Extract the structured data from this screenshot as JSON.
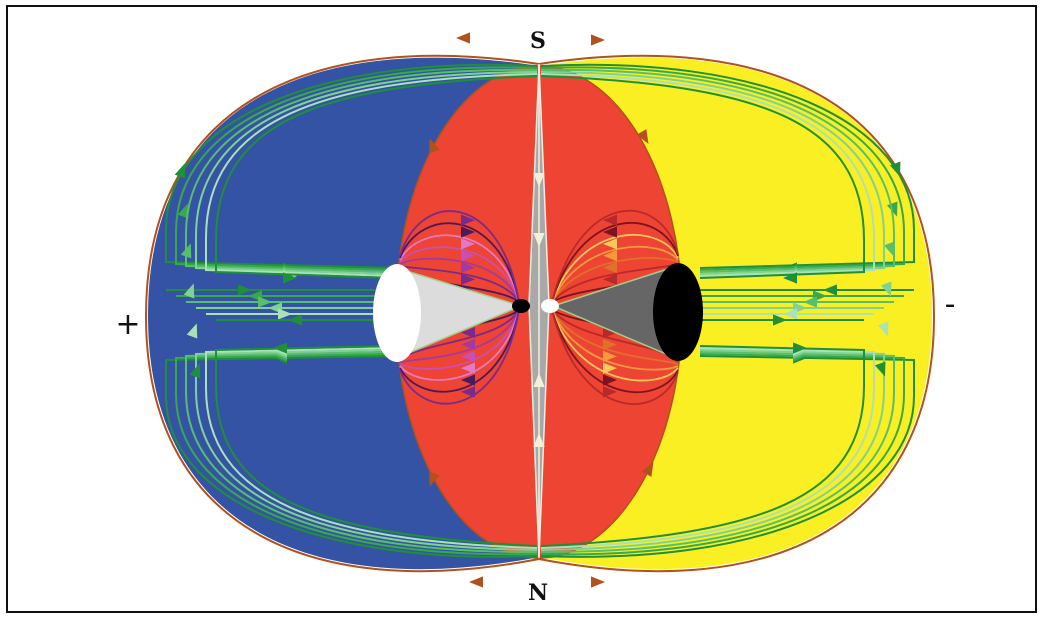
{
  "labels": {
    "south": "S",
    "north": "N",
    "positive": "+",
    "negative": "-"
  },
  "colors": {
    "left_region": "#3453a4",
    "right_region": "#f9ef22",
    "center_region": "#ee4433",
    "outline": "#b1521c",
    "separatrix": "#a8a8a8",
    "outer_field_lines": [
      "#1f8f3a",
      "#37a94c",
      "#57bf6b",
      "#7fd293",
      "#a9e2b6"
    ],
    "left_inner_lines": [
      "#4b1a5a",
      "#7a2a8a",
      "#a33aa0",
      "#c84fb6",
      "#e37ac9"
    ],
    "right_inner_lines": [
      "#7a1420",
      "#b82a2a",
      "#e0702a",
      "#f39a3a",
      "#f8c85a"
    ],
    "left_cone_fill": "#dcdcdc",
    "left_disc": "#ffffff",
    "right_cone_fill": "#666666",
    "right_disc": "#000000"
  }
}
